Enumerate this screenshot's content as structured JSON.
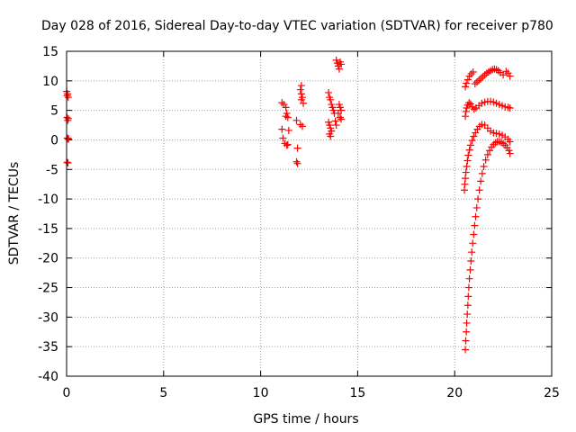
{
  "chart_data": {
    "type": "scatter",
    "title": "Day 028 of 2016, Sidereal Day-to-day VTEC variation (SDTVAR) for receiver p780",
    "xlabel": "GPS time / hours",
    "ylabel": "SDTVAR / TECUs",
    "xlim": [
      0,
      25
    ],
    "ylim": [
      -40,
      15
    ],
    "xticks": [
      0,
      5,
      10,
      15,
      20,
      25
    ],
    "yticks": [
      -40,
      -35,
      -30,
      -25,
      -20,
      -15,
      -10,
      -5,
      0,
      5,
      10,
      15
    ],
    "grid": true,
    "marker": "+",
    "color": "#ff0000",
    "series": [
      {
        "name": "SDTVAR",
        "points": [
          [
            0.0,
            8.2
          ],
          [
            0.05,
            7.8
          ],
          [
            0.08,
            7.2
          ],
          [
            0.03,
            7.5
          ],
          [
            0.02,
            3.8
          ],
          [
            0.06,
            3.3
          ],
          [
            0.09,
            3.6
          ],
          [
            0.04,
            0.3
          ],
          [
            0.08,
            0.1
          ],
          [
            0.1,
            0.2
          ],
          [
            0.03,
            -3.8
          ],
          [
            0.07,
            -3.9
          ],
          [
            11.1,
            6.3
          ],
          [
            11.2,
            6.0
          ],
          [
            11.3,
            5.5
          ],
          [
            11.35,
            4.5
          ],
          [
            11.3,
            4.0
          ],
          [
            11.4,
            3.8
          ],
          [
            11.1,
            1.8
          ],
          [
            11.45,
            1.6
          ],
          [
            11.15,
            0.3
          ],
          [
            11.25,
            -0.6
          ],
          [
            11.35,
            -0.9
          ],
          [
            11.4,
            -0.8
          ],
          [
            11.85,
            3.3
          ],
          [
            11.9,
            -1.4
          ],
          [
            11.85,
            -3.7
          ],
          [
            11.9,
            -4.0
          ],
          [
            12.1,
            9.2
          ],
          [
            12.05,
            8.5
          ],
          [
            12.1,
            7.8
          ],
          [
            12.15,
            7.2
          ],
          [
            12.1,
            6.8
          ],
          [
            12.2,
            6.2
          ],
          [
            12.05,
            2.6
          ],
          [
            12.15,
            2.3
          ],
          [
            13.5,
            8.0
          ],
          [
            13.55,
            7.2
          ],
          [
            13.6,
            6.8
          ],
          [
            13.65,
            6.0
          ],
          [
            13.7,
            5.5
          ],
          [
            13.75,
            5.0
          ],
          [
            13.5,
            3.0
          ],
          [
            13.55,
            2.5
          ],
          [
            13.6,
            2.0
          ],
          [
            13.65,
            1.5
          ],
          [
            13.55,
            1.0
          ],
          [
            13.6,
            0.6
          ],
          [
            13.8,
            4.5
          ],
          [
            13.85,
            3.2
          ],
          [
            13.9,
            2.5
          ],
          [
            13.9,
            13.5
          ],
          [
            13.95,
            13.0
          ],
          [
            14.0,
            12.5
          ],
          [
            14.05,
            12.0
          ],
          [
            14.1,
            13.2
          ],
          [
            14.15,
            12.8
          ],
          [
            14.05,
            6.0
          ],
          [
            14.1,
            5.5
          ],
          [
            14.15,
            5.0
          ],
          [
            14.0,
            4.5
          ],
          [
            14.1,
            3.8
          ],
          [
            14.15,
            3.5
          ],
          [
            20.55,
            -35.5
          ],
          [
            20.57,
            -34.0
          ],
          [
            20.6,
            -32.5
          ],
          [
            20.62,
            -31.0
          ],
          [
            20.65,
            -29.5
          ],
          [
            20.68,
            -28.0
          ],
          [
            20.7,
            -26.5
          ],
          [
            20.73,
            -25.0
          ],
          [
            20.76,
            -23.5
          ],
          [
            20.8,
            -22.0
          ],
          [
            20.84,
            -20.5
          ],
          [
            20.88,
            -19.0
          ],
          [
            20.93,
            -17.5
          ],
          [
            20.98,
            -16.0
          ],
          [
            21.03,
            -14.5
          ],
          [
            21.08,
            -13.0
          ],
          [
            21.14,
            -11.5
          ],
          [
            21.2,
            -10.0
          ],
          [
            21.27,
            -8.5
          ],
          [
            21.34,
            -7.0
          ],
          [
            21.42,
            -5.7
          ],
          [
            21.5,
            -4.5
          ],
          [
            21.6,
            -3.4
          ],
          [
            21.7,
            -2.5
          ],
          [
            21.8,
            -1.8
          ],
          [
            21.9,
            -1.2
          ],
          [
            22.0,
            -0.8
          ],
          [
            22.1,
            -0.5
          ],
          [
            22.2,
            -0.3
          ],
          [
            22.3,
            -0.3
          ],
          [
            22.4,
            -0.4
          ],
          [
            22.5,
            -0.6
          ],
          [
            22.6,
            -0.9
          ],
          [
            22.7,
            -1.3
          ],
          [
            22.8,
            -1.8
          ],
          [
            22.85,
            -2.3
          ],
          [
            20.5,
            -8.5
          ],
          [
            20.52,
            -7.5
          ],
          [
            20.55,
            -6.5
          ],
          [
            20.58,
            -5.5
          ],
          [
            20.62,
            -4.5
          ],
          [
            20.66,
            -3.5
          ],
          [
            20.7,
            -2.6
          ],
          [
            20.76,
            -1.7
          ],
          [
            20.82,
            -0.9
          ],
          [
            20.9,
            -0.1
          ],
          [
            20.98,
            0.6
          ],
          [
            21.07,
            1.2
          ],
          [
            21.17,
            1.8
          ],
          [
            21.28,
            2.3
          ],
          [
            21.4,
            2.6
          ],
          [
            21.55,
            2.5
          ],
          [
            21.7,
            2.0
          ],
          [
            21.85,
            1.5
          ],
          [
            22.0,
            1.2
          ],
          [
            22.15,
            1.1
          ],
          [
            22.3,
            1.0
          ],
          [
            22.45,
            0.8
          ],
          [
            22.6,
            0.5
          ],
          [
            22.75,
            0.1
          ],
          [
            22.85,
            -0.3
          ],
          [
            20.55,
            4.0
          ],
          [
            20.58,
            4.8
          ],
          [
            20.62,
            5.4
          ],
          [
            20.67,
            5.9
          ],
          [
            20.74,
            6.3
          ],
          [
            20.82,
            6.1
          ],
          [
            20.9,
            5.6
          ],
          [
            21.0,
            5.2
          ],
          [
            21.1,
            5.4
          ],
          [
            21.25,
            5.8
          ],
          [
            21.4,
            6.2
          ],
          [
            21.55,
            6.4
          ],
          [
            21.7,
            6.5
          ],
          [
            21.85,
            6.5
          ],
          [
            22.0,
            6.4
          ],
          [
            22.15,
            6.2
          ],
          [
            22.3,
            6.0
          ],
          [
            22.45,
            5.8
          ],
          [
            22.6,
            5.6
          ],
          [
            22.75,
            5.5
          ],
          [
            22.85,
            5.4
          ],
          [
            20.55,
            9.0
          ],
          [
            20.6,
            9.6
          ],
          [
            20.68,
            10.2
          ],
          [
            20.76,
            10.8
          ],
          [
            20.85,
            11.2
          ],
          [
            20.95,
            11.5
          ],
          [
            21.05,
            9.5
          ],
          [
            21.15,
            9.8
          ],
          [
            21.25,
            10.1
          ],
          [
            21.35,
            10.4
          ],
          [
            21.45,
            10.7
          ],
          [
            21.55,
            11.0
          ],
          [
            21.65,
            11.3
          ],
          [
            21.75,
            11.5
          ],
          [
            21.85,
            11.7
          ],
          [
            21.95,
            11.9
          ],
          [
            22.05,
            12.0
          ],
          [
            22.15,
            11.9
          ],
          [
            22.25,
            11.7
          ],
          [
            22.35,
            11.4
          ],
          [
            22.5,
            11.0
          ],
          [
            22.65,
            11.6
          ],
          [
            22.75,
            11.3
          ],
          [
            22.85,
            10.8
          ]
        ]
      }
    ]
  }
}
